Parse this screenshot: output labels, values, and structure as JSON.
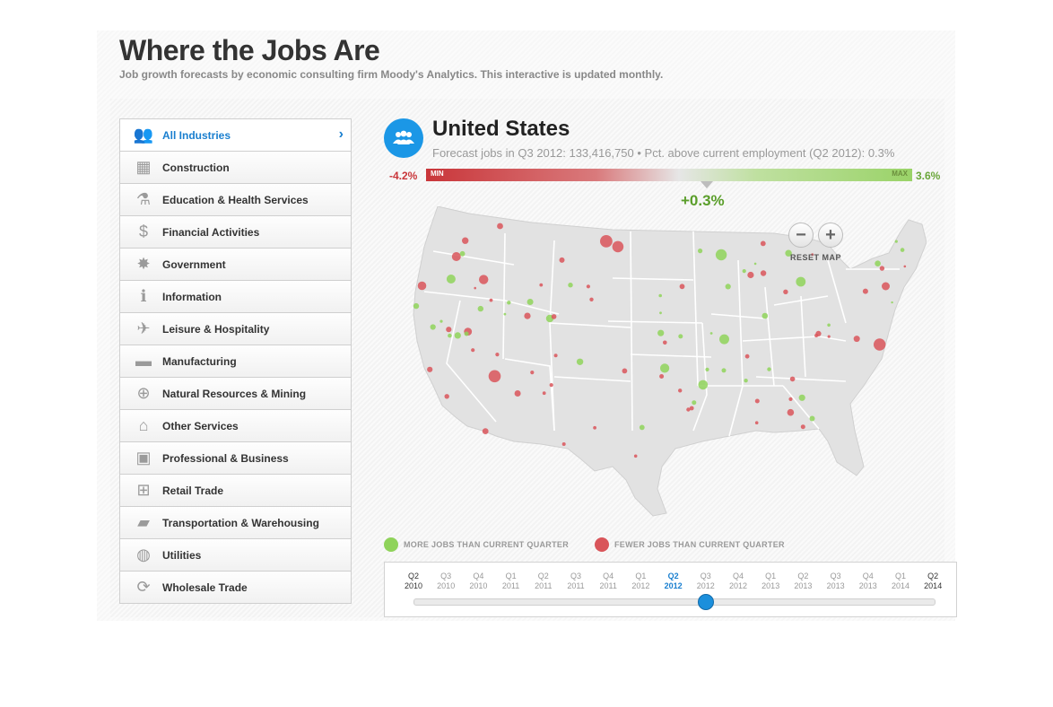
{
  "header": {
    "title": "Where the Jobs Are",
    "subtitle": "Job growth forecasts by economic consulting firm Moody's Analytics. This interactive is updated monthly."
  },
  "sidebar": {
    "items": [
      {
        "label": "All Industries",
        "icon": "people-icon",
        "active": true
      },
      {
        "label": "Construction",
        "icon": "barrier-icon"
      },
      {
        "label": "Education & Health Services",
        "icon": "flask-icon"
      },
      {
        "label": "Financial Activities",
        "icon": "dollar-icon"
      },
      {
        "label": "Government",
        "icon": "star-badge-icon"
      },
      {
        "label": "Information",
        "icon": "info-icon"
      },
      {
        "label": "Leisure & Hospitality",
        "icon": "airplane-icon"
      },
      {
        "label": "Manufacturing",
        "icon": "car-icon"
      },
      {
        "label": "Natural Resources & Mining",
        "icon": "crosshair-icon"
      },
      {
        "label": "Other Services",
        "icon": "house-icon"
      },
      {
        "label": "Professional & Business",
        "icon": "briefcase-icon"
      },
      {
        "label": "Retail Trade",
        "icon": "cart-icon"
      },
      {
        "label": "Transportation & Warehousing",
        "icon": "truck-icon"
      },
      {
        "label": "Utilities",
        "icon": "lightbulb-icon"
      },
      {
        "label": "Wholesale Trade",
        "icon": "cycle-arrows-icon"
      }
    ]
  },
  "region": {
    "name": "United States",
    "forecast": "Forecast jobs in Q3 2012: 133,416,750 • Pct. above current employment (Q2 2012): 0.3%",
    "range_min": "-4.2%",
    "range_max": "3.6%",
    "bar_min_label": "MIN",
    "bar_max_label": "MAX",
    "current": "+0.3%",
    "current_fraction": 0.578
  },
  "map": {
    "reset_label": "RESET MAP",
    "zoom_out": "−",
    "zoom_in": "+",
    "colors": {
      "more": "#8fd35a",
      "fewer": "#d9555a",
      "land": "#e2e2e2",
      "border": "#ffffff"
    }
  },
  "legend": {
    "more": "MORE JOBS THAN CURRENT QUARTER",
    "fewer": "FEWER JOBS THAN CURRENT QUARTER"
  },
  "timeline": {
    "ticks": [
      {
        "q": "Q2",
        "y": "2010"
      },
      {
        "q": "Q3",
        "y": "2010"
      },
      {
        "q": "Q4",
        "y": "2010"
      },
      {
        "q": "Q1",
        "y": "2011"
      },
      {
        "q": "Q2",
        "y": "2011"
      },
      {
        "q": "Q3",
        "y": "2011"
      },
      {
        "q": "Q4",
        "y": "2011"
      },
      {
        "q": "Q1",
        "y": "2012"
      },
      {
        "q": "Q2",
        "y": "2012"
      },
      {
        "q": "Q3",
        "y": "2012"
      },
      {
        "q": "Q4",
        "y": "2012"
      },
      {
        "q": "Q1",
        "y": "2013"
      },
      {
        "q": "Q2",
        "y": "2013"
      },
      {
        "q": "Q3",
        "y": "2013"
      },
      {
        "q": "Q4",
        "y": "2013"
      },
      {
        "q": "Q1",
        "y": "2014"
      },
      {
        "q": "Q2",
        "y": "2014"
      }
    ],
    "active_index": 8,
    "selected_index": 9
  }
}
